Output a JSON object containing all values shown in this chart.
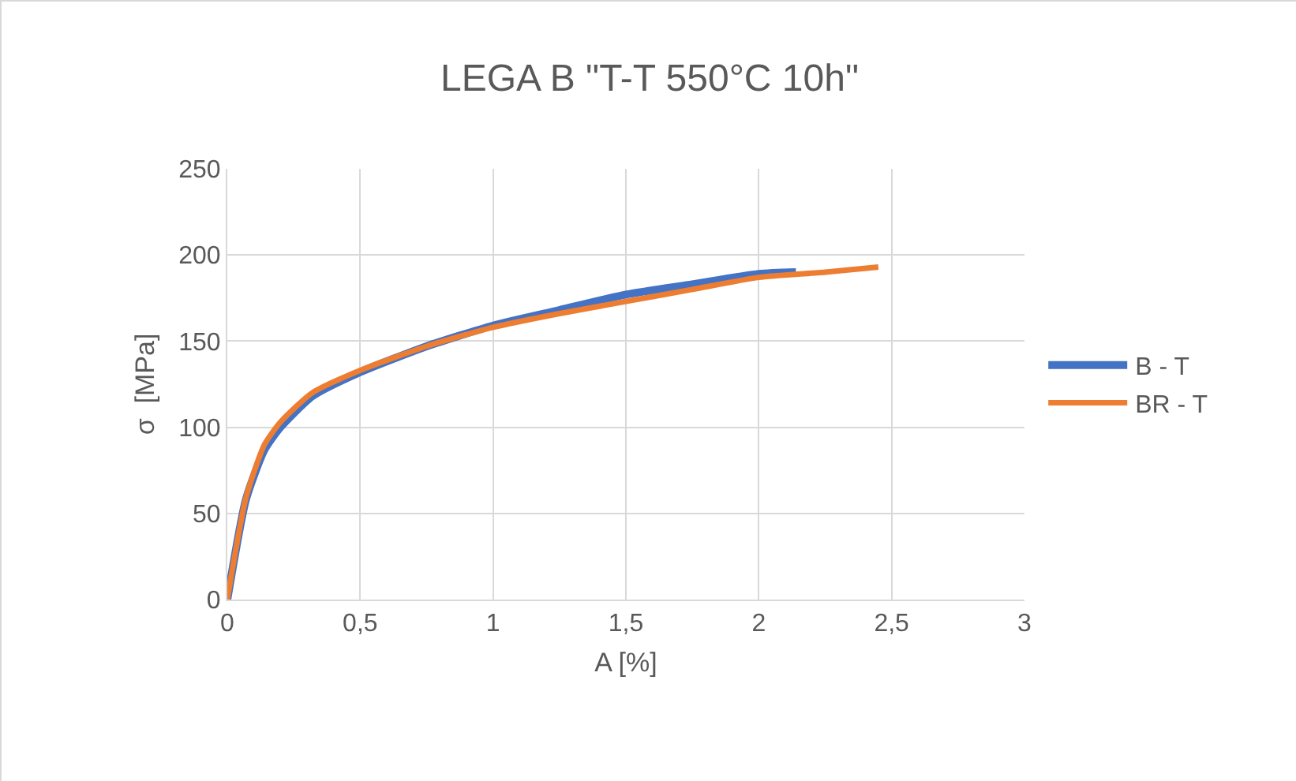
{
  "chart_data": {
    "type": "line",
    "title": "LEGA B \"T-T 550°C 10h\"",
    "xlabel": "A [%]",
    "ylabel": "σ  [MPa]",
    "xlim": [
      0,
      3
    ],
    "xticks": [
      0,
      {
        "value": 0.5,
        "label": "0,5"
      },
      1,
      {
        "value": 1.5,
        "label": "1,5"
      },
      2,
      {
        "value": 2.5,
        "label": "2,5"
      },
      3
    ],
    "ylim": [
      0,
      250
    ],
    "yticks": [
      0,
      50,
      100,
      150,
      200,
      250
    ],
    "grid": true,
    "legend": "right",
    "marker": "none",
    "line_style": "solid",
    "series": [
      {
        "name": "B - T",
        "color": "#4472c4",
        "x": [
          0,
          0.07,
          0.14,
          0.2,
          0.32,
          0.5,
          0.75,
          1,
          1.25,
          1.5,
          1.75,
          2,
          2.14
        ],
        "values": [
          0,
          58,
          87,
          100,
          118,
          132,
          147,
          159,
          168,
          177,
          183,
          189,
          190
        ]
      },
      {
        "name": "BR - T",
        "color": "#ed7d31",
        "x": [
          0,
          0.07,
          0.14,
          0.2,
          0.32,
          0.5,
          0.75,
          1,
          1.25,
          1.5,
          1.75,
          2,
          2.25,
          2.45
        ],
        "values": [
          0,
          59,
          90,
          103,
          120,
          133,
          147,
          158,
          166,
          173,
          180,
          187,
          190,
          193
        ]
      }
    ]
  }
}
